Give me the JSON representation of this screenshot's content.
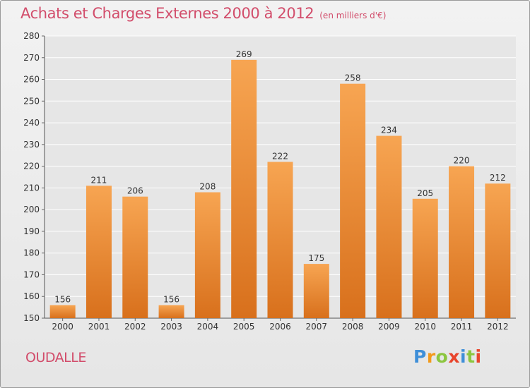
{
  "header": {
    "title": "Achats et Charges Externes 2000 à 2012",
    "unit": "(en milliers d'€)"
  },
  "footer": {
    "commune": "OUDALLE",
    "logo_letters": [
      "P",
      "r",
      "o",
      "x",
      "i",
      "t",
      "i"
    ],
    "logo_colors": [
      "#3f8fd8",
      "#f29a1c",
      "#8cc63f",
      "#e8452c",
      "#3f8fd8",
      "#8cc63f",
      "#e8452c"
    ]
  },
  "colors": {
    "bar_top": "#f7a552",
    "bar_bottom": "#d8701c",
    "title": "#d24d6b",
    "grid": "#ffffff"
  },
  "chart_data": {
    "type": "bar",
    "title": "Achats et Charges Externes 2000 à 2012",
    "subtitle": "(en milliers d'€)",
    "categories": [
      "2000",
      "2001",
      "2002",
      "2003",
      "2004",
      "2005",
      "2006",
      "2007",
      "2008",
      "2009",
      "2010",
      "2011",
      "2012"
    ],
    "values": [
      156,
      211,
      206,
      156,
      208,
      269,
      222,
      175,
      258,
      234,
      205,
      220,
      212
    ],
    "ylim": [
      150,
      280
    ],
    "yticks": [
      150,
      160,
      170,
      180,
      190,
      200,
      210,
      220,
      230,
      240,
      250,
      260,
      270,
      280
    ],
    "grid": true,
    "data_labels": true
  }
}
